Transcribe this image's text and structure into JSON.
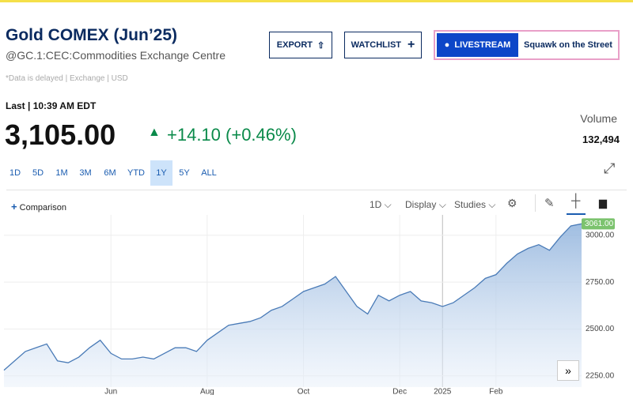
{
  "header": {
    "title": "Gold COMEX (Jun’25)",
    "symbol": "@GC.1:CEC:Commodities Exchange Centre",
    "note": "*Data is delayed | Exchange | USD",
    "buttons": {
      "export": "EXPORT",
      "watchlist": "WATCHLIST",
      "livestream": "LIVESTREAM",
      "squawk": "Squawk on the Street"
    }
  },
  "quote": {
    "last_label": "Last | 10:39 AM EDT",
    "price": "3,105.00",
    "change": "+14.10 (+0.46%)",
    "volume_label": "Volume",
    "volume": "132,494"
  },
  "ranges": [
    "1D",
    "5D",
    "1M",
    "3M",
    "6M",
    "YTD",
    "1Y",
    "5Y",
    "ALL"
  ],
  "selected_range": "1Y",
  "toolbar": {
    "comparison": "Comparison",
    "interval": "1D",
    "display": "Display",
    "studies": "Studies"
  },
  "chart_data": {
    "type": "area",
    "categories": [
      null,
      null,
      null,
      null,
      null,
      null,
      null,
      null,
      null,
      null,
      "Jun",
      null,
      null,
      null,
      null,
      null,
      null,
      null,
      null,
      "Aug",
      null,
      null,
      null,
      null,
      null,
      null,
      null,
      null,
      "Oct",
      null,
      null,
      null,
      null,
      null,
      null,
      null,
      null,
      "Dec",
      null,
      null,
      null,
      "2025",
      null,
      null,
      null,
      null,
      "Feb",
      null,
      null,
      null,
      null,
      null,
      null,
      null,
      null
    ],
    "series": [
      {
        "color": "#4a7bb7",
        "values": [
          2280,
          2330,
          2380,
          2400,
          2420,
          2330,
          2320,
          2350,
          2400,
          2440,
          2370,
          2340,
          2340,
          2350,
          2340,
          2370,
          2400,
          2400,
          2380,
          2440,
          2480,
          2520,
          2530,
          2540,
          2560,
          2600,
          2620,
          2660,
          2700,
          2720,
          2740,
          2780,
          2700,
          2620,
          2580,
          2680,
          2650,
          2680,
          2700,
          2650,
          2640,
          2620,
          2640,
          2680,
          2720,
          2770,
          2790,
          2850,
          2900,
          2930,
          2950,
          2920,
          2990,
          3050,
          3061
        ]
      }
    ],
    "last_price": {
      "value": 3061,
      "label": "3061.00"
    },
    "ylim": [
      2190,
      3075
    ],
    "yticks": [
      {
        "value": 2250,
        "label": "2250.00"
      },
      {
        "value": 2500,
        "label": "2500.00"
      },
      {
        "value": 2750,
        "label": "2750.00"
      },
      {
        "value": 3000,
        "label": "3000.00"
      }
    ],
    "grid": true
  }
}
